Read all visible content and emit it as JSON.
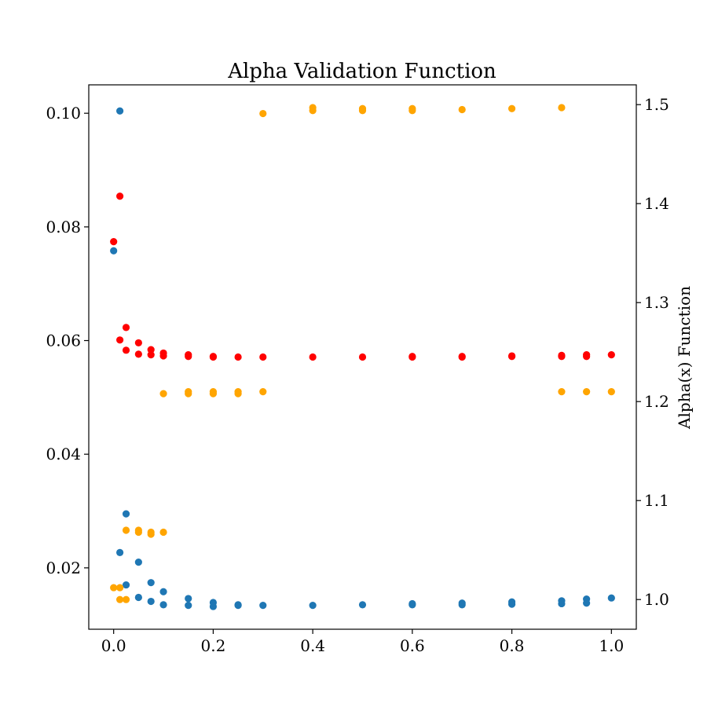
{
  "chart_data": {
    "type": "scatter",
    "title": "Alpha Validation Function",
    "xlabel": "",
    "ylabel_left": "",
    "ylabel_right": "Alpha(x) Function",
    "xlim": [
      -0.05,
      1.05
    ],
    "ylim_left": [
      0.0092,
      0.105
    ],
    "ylim_right": [
      0.97,
      1.52
    ],
    "x_ticks": [
      0.0,
      0.2,
      0.4,
      0.6,
      0.8,
      1.0
    ],
    "x_tick_labels": [
      "0.0",
      "0.2",
      "0.4",
      "0.6",
      "0.8",
      "1.0"
    ],
    "y_left_ticks": [
      0.02,
      0.04,
      0.06,
      0.08,
      0.1
    ],
    "y_left_tick_labels": [
      "0.02",
      "0.04",
      "0.06",
      "0.08",
      "0.10"
    ],
    "y_right_ticks": [
      1.0,
      1.1,
      1.2,
      1.3,
      1.4,
      1.5
    ],
    "y_right_tick_labels": [
      "1.0",
      "1.1",
      "1.2",
      "1.3",
      "1.4",
      "1.5"
    ],
    "grid": false,
    "series": [
      {
        "axis": "left",
        "color": "#1f77b4",
        "points": [
          [
            0.0,
            0.0758
          ],
          [
            0.0125,
            0.1004
          ],
          [
            0.0125,
            0.0227
          ],
          [
            0.025,
            0.0295
          ],
          [
            0.025,
            0.017
          ],
          [
            0.05,
            0.021
          ],
          [
            0.05,
            0.0148
          ],
          [
            0.075,
            0.0174
          ],
          [
            0.075,
            0.0141
          ],
          [
            0.1,
            0.0158
          ],
          [
            0.1,
            0.0135
          ],
          [
            0.15,
            0.0146
          ],
          [
            0.15,
            0.0134
          ],
          [
            0.2,
            0.0139
          ],
          [
            0.2,
            0.0132
          ],
          [
            0.25,
            0.0135
          ],
          [
            0.25,
            0.0134
          ],
          [
            0.3,
            0.0134
          ],
          [
            0.4,
            0.0134
          ],
          [
            0.5,
            0.0135
          ],
          [
            0.6,
            0.0135
          ],
          [
            0.6,
            0.0137
          ],
          [
            0.7,
            0.0135
          ],
          [
            0.7,
            0.0138
          ],
          [
            0.8,
            0.0136
          ],
          [
            0.8,
            0.014
          ],
          [
            0.9,
            0.0137
          ],
          [
            0.9,
            0.0142
          ],
          [
            0.95,
            0.0138
          ],
          [
            0.95,
            0.0145
          ],
          [
            1.0,
            0.0147
          ]
        ]
      },
      {
        "axis": "left",
        "color": "#ff0000",
        "points": [
          [
            0.0,
            0.0774
          ],
          [
            0.0125,
            0.0854
          ],
          [
            0.0125,
            0.0601
          ],
          [
            0.025,
            0.0623
          ],
          [
            0.025,
            0.0583
          ],
          [
            0.05,
            0.0596
          ],
          [
            0.05,
            0.0576
          ],
          [
            0.075,
            0.0584
          ],
          [
            0.075,
            0.0575
          ],
          [
            0.1,
            0.0578
          ],
          [
            0.1,
            0.0573
          ],
          [
            0.15,
            0.0575
          ],
          [
            0.15,
            0.0572
          ],
          [
            0.2,
            0.0572
          ],
          [
            0.2,
            0.0571
          ],
          [
            0.25,
            0.0571
          ],
          [
            0.3,
            0.0571
          ],
          [
            0.4,
            0.0571
          ],
          [
            0.5,
            0.0571
          ],
          [
            0.6,
            0.0571
          ],
          [
            0.6,
            0.0572
          ],
          [
            0.7,
            0.0571
          ],
          [
            0.7,
            0.0572
          ],
          [
            0.8,
            0.0572
          ],
          [
            0.8,
            0.0573
          ],
          [
            0.9,
            0.0572
          ],
          [
            0.9,
            0.0574
          ],
          [
            0.95,
            0.0572
          ],
          [
            0.95,
            0.0575
          ],
          [
            1.0,
            0.0575
          ]
        ]
      },
      {
        "axis": "right",
        "color": "#ffa500",
        "points": [
          [
            0.0,
            1.012
          ],
          [
            0.0125,
            1.012
          ],
          [
            0.0125,
            1.0
          ],
          [
            0.025,
            1.0
          ],
          [
            0.025,
            1.07
          ],
          [
            0.05,
            1.07
          ],
          [
            0.05,
            1.068
          ],
          [
            0.075,
            1.068
          ],
          [
            0.075,
            1.066
          ],
          [
            0.1,
            1.068
          ],
          [
            0.1,
            1.208
          ],
          [
            0.15,
            1.208
          ],
          [
            0.15,
            1.21
          ],
          [
            0.2,
            1.208
          ],
          [
            0.2,
            1.21
          ],
          [
            0.25,
            1.208
          ],
          [
            0.25,
            1.21
          ],
          [
            0.3,
            1.21
          ],
          [
            0.3,
            1.491
          ],
          [
            0.4,
            1.494
          ],
          [
            0.4,
            1.497
          ],
          [
            0.5,
            1.494
          ],
          [
            0.5,
            1.496
          ],
          [
            0.6,
            1.494
          ],
          [
            0.6,
            1.496
          ],
          [
            0.7,
            1.495
          ],
          [
            0.8,
            1.496
          ],
          [
            0.9,
            1.497
          ],
          [
            0.9,
            1.21
          ],
          [
            0.95,
            1.21
          ],
          [
            1.0,
            1.21
          ]
        ]
      }
    ]
  }
}
